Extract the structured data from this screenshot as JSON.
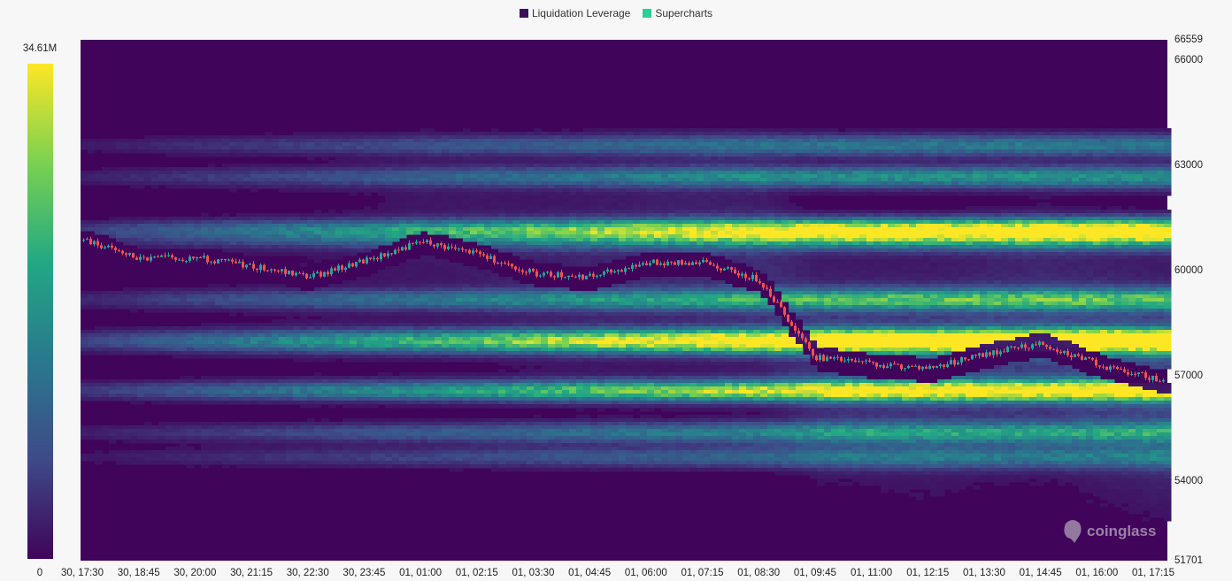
{
  "legend": {
    "items": [
      {
        "label": "Liquidation Leverage",
        "color": "#3d0f5a"
      },
      {
        "label": "Supercharts",
        "color": "#27d19a"
      }
    ]
  },
  "colorbar": {
    "max_label": "34.61M",
    "min_label": "0"
  },
  "watermark": {
    "text": "coinglass"
  },
  "chart_data": {
    "type": "heatmap",
    "title": "",
    "ylim": [
      51701,
      66559
    ],
    "y_tick_labels": [
      "66559",
      "66000",
      "63000",
      "60000",
      "57000",
      "54000",
      "51701"
    ],
    "x_tick_labels": [
      "30, 17:30",
      "30, 18:45",
      "30, 20:00",
      "30, 21:15",
      "30, 22:30",
      "30, 23:45",
      "01, 01:00",
      "01, 02:15",
      "01, 03:30",
      "01, 04:45",
      "01, 06:00",
      "01, 07:15",
      "01, 08:30",
      "01, 09:45",
      "01, 11:00",
      "01, 12:15",
      "01, 13:30",
      "01, 14:45",
      "01, 16:00",
      "01, 17:15"
    ],
    "colorscale": {
      "min": 0,
      "max": "34.61M",
      "colors": [
        "#40045a",
        "#3e4a89",
        "#2a788e",
        "#22a884",
        "#7ad151",
        "#fde725"
      ]
    },
    "price_series": {
      "name": "Supercharts",
      "x": [
        "30, 17:30",
        "30, 18:45",
        "30, 20:00",
        "30, 21:15",
        "30, 22:30",
        "30, 23:45",
        "01, 01:00",
        "01, 02:15",
        "01, 03:30",
        "01, 04:45",
        "01, 06:00",
        "01, 07:15",
        "01, 08:30",
        "01, 09:45",
        "01, 11:00",
        "01, 12:15",
        "01, 13:30",
        "01, 14:45",
        "01, 16:00",
        "01, 17:15"
      ],
      "close": [
        60850,
        60300,
        60350,
        60100,
        59800,
        60250,
        60800,
        60450,
        59900,
        59800,
        60200,
        60200,
        59700,
        57500,
        57300,
        57200,
        57600,
        57900,
        57300,
        56900
      ]
    },
    "liquidation_bands": [
      {
        "price": 61200,
        "intensity": 0.95
      },
      {
        "price": 56600,
        "intensity": 1.0
      },
      {
        "price": 58100,
        "intensity": 0.8
      },
      {
        "price": 59200,
        "intensity": 0.65
      },
      {
        "price": 57900,
        "intensity": 0.6
      },
      {
        "price": 62700,
        "intensity": 0.5
      },
      {
        "price": 55400,
        "intensity": 0.5
      },
      {
        "price": 63600,
        "intensity": 0.4
      },
      {
        "price": 60900,
        "intensity": 0.45
      },
      {
        "price": 54700,
        "intensity": 0.35
      }
    ]
  }
}
